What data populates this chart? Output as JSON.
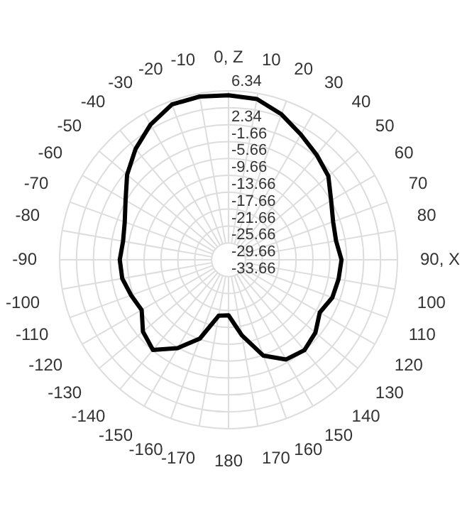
{
  "chart_data": {
    "type": "radar",
    "categories": [
      "0, Z",
      "10",
      "20",
      "30",
      "40",
      "50",
      "60",
      "70",
      "80",
      "90, X",
      "100",
      "110",
      "120",
      "130",
      "140",
      "150",
      "160",
      "170",
      "180",
      "-170",
      "-160",
      "-150",
      "-140",
      "-130",
      "-120",
      "-110",
      "-100",
      "-90",
      "-80",
      "-70",
      "-60",
      "-50",
      "-40",
      "-30",
      "-20",
      "-10"
    ],
    "series": [
      {
        "color": "#000000",
        "values": [
          5.3,
          5.0,
          3.0,
          0.6,
          -1.2,
          -2.8,
          -5.6,
          -7.3,
          -7.8,
          -6.9,
          -7.2,
          -7.5,
          -8.7,
          -6.8,
          -5.7,
          -6.4,
          -9.5,
          -15.5,
          -20.5,
          -20.2,
          -13.8,
          -9.5,
          -5.8,
          -7.2,
          -9.9,
          -9.1,
          -8.1,
          -7.9,
          -8.3,
          -7.5,
          -5.5,
          -2.3,
          0.6,
          3.3,
          5.5,
          5.6
        ]
      }
    ],
    "ylim": [
      -33.66,
      6.34
    ],
    "yticks": [
      -33.66,
      -29.66,
      -25.66,
      -21.66,
      -17.66,
      -13.66,
      -9.66,
      -5.66,
      -1.66,
      2.34,
      6.34
    ],
    "grid": true,
    "marker": "none"
  }
}
